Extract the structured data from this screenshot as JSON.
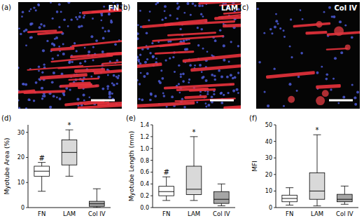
{
  "panels": [
    {
      "label": "(a)",
      "title": "FN"
    },
    {
      "label": "(b)",
      "title": "LAM"
    },
    {
      "label": "(c)",
      "title": "Col IV"
    }
  ],
  "chart_data": [
    {
      "type": "box",
      "title": "(d)",
      "y_label": "Myotube Area (%)",
      "categories": [
        "FN",
        "LAM",
        "Col IV"
      ],
      "min": [
        6.5,
        12.5,
        0
      ],
      "q1": [
        12.5,
        17,
        0.5
      ],
      "median": [
        14.5,
        22,
        1.5
      ],
      "q3": [
        16.5,
        27,
        2.5
      ],
      "max": [
        18,
        31,
        7.5
      ],
      "significance": [
        "#",
        "*",
        null
      ],
      "colors": [
        "#ffffff",
        "#d9d9d9",
        "#a6a6a6"
      ],
      "ylim": [
        0,
        33
      ],
      "yticks": [
        0,
        10,
        20,
        30
      ]
    },
    {
      "type": "box",
      "title": "(e)",
      "y_label": "Myotube Length (mm)",
      "categories": [
        "FN",
        "LAM",
        "Col IV"
      ],
      "min": [
        0.12,
        0.12,
        0.03
      ],
      "q1": [
        0.2,
        0.22,
        0.07
      ],
      "median": [
        0.27,
        0.31,
        0.14
      ],
      "q3": [
        0.36,
        0.7,
        0.27
      ],
      "max": [
        0.52,
        1.2,
        0.4
      ],
      "significance": [
        "#",
        "*",
        null
      ],
      "colors": [
        "#ffffff",
        "#d9d9d9",
        "#a6a6a6"
      ],
      "ylim": [
        0,
        1.4
      ],
      "yticks": [
        {
          "value": 0,
          "label": "0.0"
        },
        0.2,
        0.4,
        0.6,
        0.8,
        {
          "value": 1,
          "label": "1.0"
        },
        1.2,
        1.4
      ]
    },
    {
      "type": "box",
      "title": "(f)",
      "y_label": "MFI",
      "categories": [
        "FN",
        "LAM",
        "Col IV"
      ],
      "min": [
        1.5,
        1,
        2
      ],
      "q1": [
        3.5,
        5,
        3.5
      ],
      "median": [
        5.5,
        10,
        5
      ],
      "q3": [
        7.5,
        21,
        8
      ],
      "max": [
        12,
        44,
        13
      ],
      "significance": [
        null,
        "*",
        null
      ],
      "colors": [
        "#ffffff",
        "#d9d9d9",
        "#a6a6a6"
      ],
      "ylim": [
        0,
        50
      ],
      "yticks": [
        0,
        10,
        20,
        30,
        40,
        50
      ]
    }
  ]
}
